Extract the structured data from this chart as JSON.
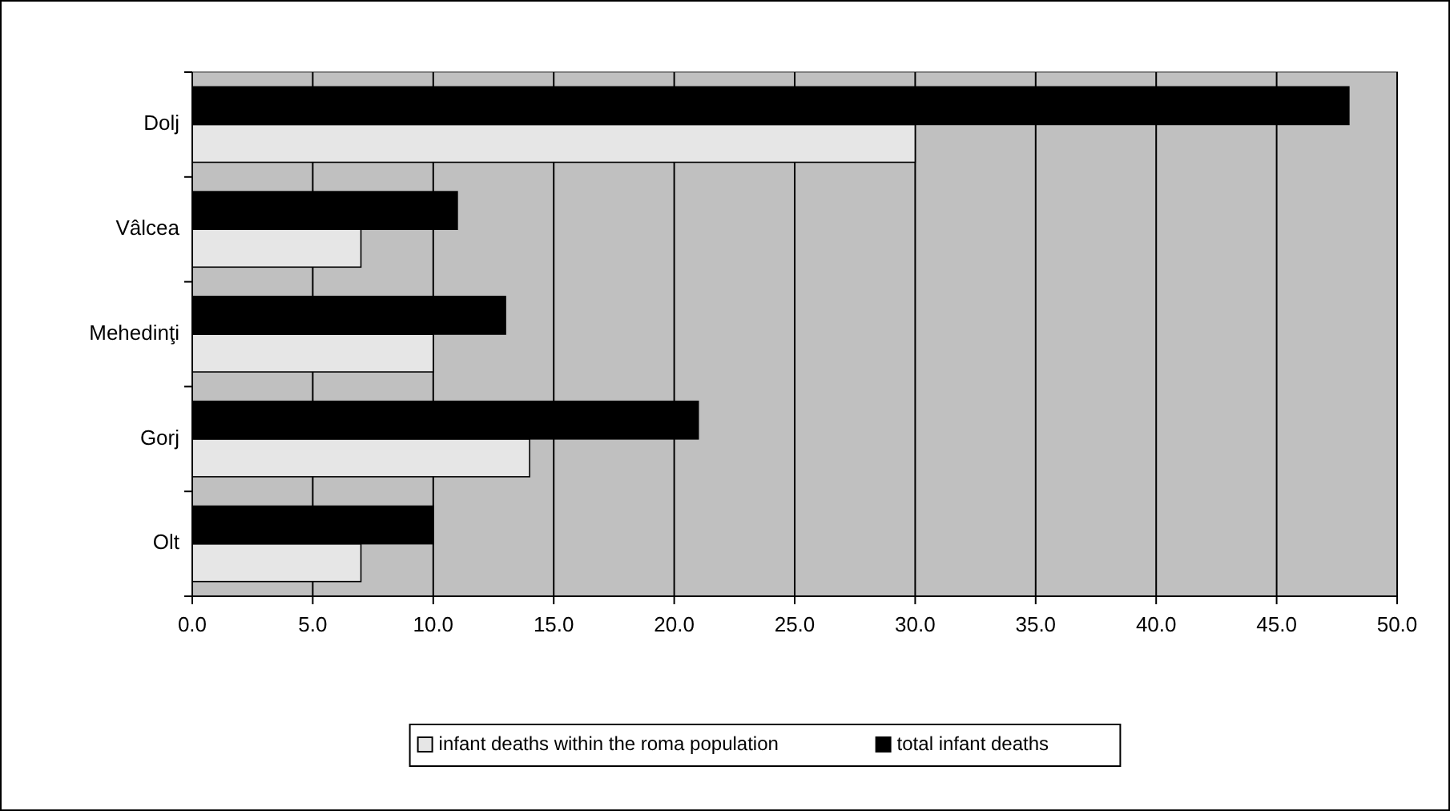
{
  "chart_data": {
    "type": "bar",
    "orientation": "horizontal",
    "categories": [
      "Dolj",
      "Vâlcea",
      "Mehedinţi",
      "Gorj",
      "Olt"
    ],
    "series": [
      {
        "name": "infant deaths within the roma population",
        "color": "#e6e6e6",
        "values": [
          30,
          7,
          10,
          14,
          7
        ]
      },
      {
        "name": "total infant deaths",
        "color": "#000000",
        "values": [
          48,
          11,
          13,
          21,
          10
        ]
      }
    ],
    "xlim": [
      0,
      50
    ],
    "xticks": [
      {
        "value": 0,
        "label": "0.0"
      },
      {
        "value": 5,
        "label": "5.0"
      },
      {
        "value": 10,
        "label": "10.0"
      },
      {
        "value": 15,
        "label": "15.0"
      },
      {
        "value": 20,
        "label": "20.0"
      },
      {
        "value": 25,
        "label": "25.0"
      },
      {
        "value": 30,
        "label": "30.0"
      },
      {
        "value": 35,
        "label": "35.0"
      },
      {
        "value": 40,
        "label": "40.0"
      },
      {
        "value": 45,
        "label": "45.0"
      },
      {
        "value": 50,
        "label": "50.0"
      }
    ],
    "grid": "x",
    "legend": "bottom"
  }
}
